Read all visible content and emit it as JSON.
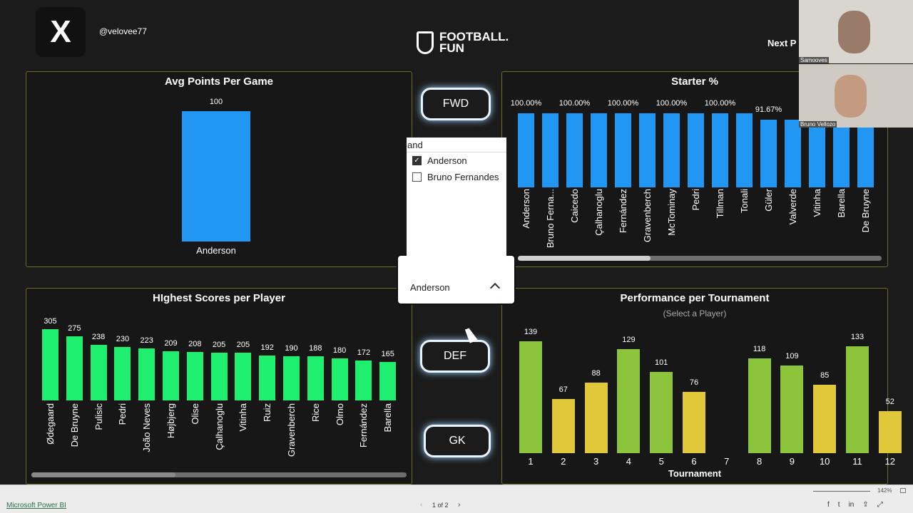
{
  "header": {
    "x_logo": "X",
    "handle": "@velovee77",
    "brand_line1": "FOOTBALL.",
    "brand_line2": "FUN",
    "next_page": "Next P"
  },
  "buttons": {
    "fwd": "FWD",
    "def": "DEF",
    "gk": "GK"
  },
  "slicer": {
    "search_value": "and",
    "options": [
      {
        "label": "Anderson",
        "checked": true
      },
      {
        "label": "Bruno Fernandes",
        "checked": false
      }
    ],
    "selected": "Anderson"
  },
  "cameras": [
    {
      "name": "Samooves"
    },
    {
      "name": "Bruno Vellozo"
    }
  ],
  "colors": {
    "blue": "#2196f3",
    "green": "#1fef6f",
    "tour_green": "#8cc43c",
    "tour_yellow": "#e0c83a",
    "panel_border": "#6d6a24"
  },
  "chart_data": [
    {
      "type": "bar",
      "title": "Avg Points Per Game",
      "categories": [
        "Anderson"
      ],
      "values": [
        100
      ],
      "data_labels": [
        "100"
      ]
    },
    {
      "type": "bar",
      "title": "Starter %",
      "categories": [
        "Anderson",
        "Bruno Ferna...",
        "Caicedo",
        "Çalhanoglu",
        "Fernández",
        "Gravenberch",
        "McTominay",
        "Pedri",
        "Tillman",
        "Tonali",
        "Güler",
        "Valverde",
        "Vitinha",
        "Barella",
        "De Bruyne"
      ],
      "values": [
        100,
        100,
        100,
        100,
        100,
        100,
        100,
        100,
        100,
        100,
        91.67,
        91.67,
        null,
        null,
        null
      ],
      "data_labels": [
        "100.00%",
        "",
        "100.00%",
        "",
        "100.00%",
        "",
        "100.00%",
        "",
        "100.00%",
        "",
        "91.67%",
        "",
        "",
        "",
        ""
      ]
    },
    {
      "type": "bar",
      "title": "HIghest Scores per Player",
      "categories": [
        "Ødegaard",
        "De Bruyne",
        "Pulisic",
        "Pedri",
        "João Neves",
        "Højbjerg",
        "Olise",
        "Çalhanoglu",
        "Vitinha",
        "Ruiz",
        "Gravenberch",
        "Rice",
        "Olmo",
        "Fernández",
        "Barella"
      ],
      "values": [
        305,
        275,
        238,
        230,
        223,
        209,
        208,
        205,
        205,
        192,
        190,
        188,
        180,
        172,
        165
      ]
    },
    {
      "type": "bar",
      "title": "Performance per Tournament",
      "subtitle": "(Select a Player)",
      "xlabel": "Tournament",
      "categories": [
        "1",
        "2",
        "3",
        "4",
        "5",
        "6",
        "7",
        "8",
        "9",
        "10",
        "11",
        "12"
      ],
      "values": [
        139,
        67,
        88,
        129,
        101,
        76,
        null,
        118,
        109,
        85,
        133,
        52
      ],
      "bar_colors": [
        "green",
        "yellow",
        "yellow",
        "green",
        "green",
        "yellow",
        "",
        "green",
        "green",
        "yellow",
        "green",
        "yellow"
      ]
    }
  ],
  "footer": {
    "app_link": "Microsoft Power BI",
    "page": "1 of 2",
    "zoom": "142%"
  }
}
